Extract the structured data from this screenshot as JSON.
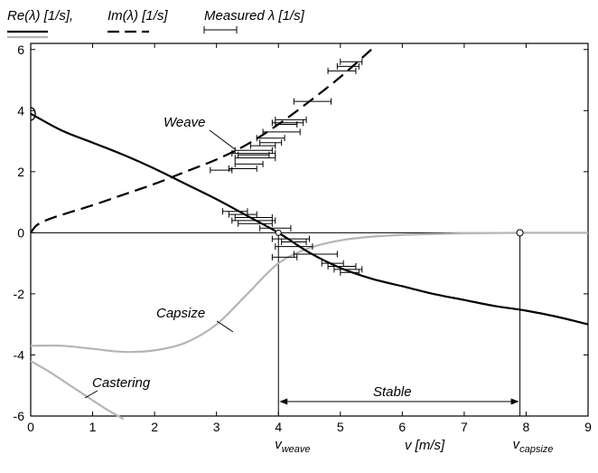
{
  "chart_data": {
    "type": "line",
    "xlabel": "v  [m/s]",
    "xlim": [
      0,
      9
    ],
    "ylim": [
      -6,
      6.2
    ],
    "x_ticks": [
      0,
      1,
      2,
      3,
      4,
      5,
      6,
      7,
      8,
      9
    ],
    "y_ticks": [
      6,
      4,
      2,
      0,
      -2,
      -4,
      -6
    ],
    "legend": {
      "placement": "top",
      "re_label": "Re(λ) [1/s],",
      "im_label": "Im(λ) [1/s]",
      "measured_label": "Measured λ [1/s]"
    },
    "annotations": {
      "weave": "Weave",
      "capsize": "Capsize",
      "castering": "Castering",
      "stable": "Stable",
      "v_weave_main": "v",
      "v_weave_sub": "weave",
      "v_capsize_main": "v",
      "v_capsize_sub": "capsize"
    },
    "markers": {
      "v_weave": 4.0,
      "v_capsize": 7.9
    },
    "series": [
      {
        "key": "weave_re",
        "style": "solid-black",
        "x": [
          0,
          0.5,
          1,
          1.5,
          2,
          2.5,
          3,
          3.5,
          4,
          4.5,
          5,
          5.5,
          6,
          6.5,
          7,
          7.5,
          8,
          8.5,
          9
        ],
        "y": [
          3.9,
          3.35,
          2.95,
          2.55,
          2.1,
          1.6,
          1.1,
          0.55,
          0.0,
          -0.65,
          -1.15,
          -1.5,
          -1.75,
          -2.0,
          -2.2,
          -2.4,
          -2.55,
          -2.75,
          -3.0
        ]
      },
      {
        "key": "weave_im",
        "style": "dashed-black",
        "x": [
          0,
          0.1,
          0.3,
          0.6,
          1,
          1.5,
          2,
          2.5,
          3,
          3.5,
          4,
          4.5,
          5,
          5.5
        ],
        "y": [
          0.0,
          0.25,
          0.45,
          0.65,
          0.9,
          1.25,
          1.6,
          2.0,
          2.4,
          2.9,
          3.55,
          4.3,
          5.1,
          6.0
        ]
      },
      {
        "key": "capsize",
        "style": "solid-gray",
        "x": [
          0,
          0.5,
          1,
          1.5,
          2,
          2.5,
          3,
          3.5,
          4,
          4.5,
          5,
          5.5,
          6,
          6.5,
          7,
          7.5,
          7.9,
          8.5,
          9
        ],
        "y": [
          -3.7,
          -3.7,
          -3.8,
          -3.9,
          -3.85,
          -3.6,
          -3.0,
          -2.0,
          -1.0,
          -0.5,
          -0.25,
          -0.13,
          -0.07,
          -0.04,
          -0.02,
          -0.01,
          0.0,
          0.0,
          0.0
        ]
      },
      {
        "key": "castering",
        "style": "solid-gray",
        "x": [
          0,
          0.3,
          0.6,
          0.9,
          1.2,
          1.5
        ],
        "y": [
          -4.2,
          -4.55,
          -4.95,
          -5.35,
          -5.75,
          -6.1
        ]
      }
    ],
    "measured": [
      {
        "y": 5.6,
        "xmin": 5.0,
        "xmax": 5.35
      },
      {
        "y": 5.45,
        "xmin": 4.95,
        "xmax": 5.3
      },
      {
        "y": 5.3,
        "xmin": 4.8,
        "xmax": 5.25
      },
      {
        "y": 4.3,
        "xmin": 4.25,
        "xmax": 4.85
      },
      {
        "y": 3.7,
        "xmin": 3.95,
        "xmax": 4.45
      },
      {
        "y": 3.6,
        "xmin": 3.9,
        "xmax": 4.4
      },
      {
        "y": 3.55,
        "xmin": 3.95,
        "xmax": 4.3
      },
      {
        "y": 3.3,
        "xmin": 3.75,
        "xmax": 4.35
      },
      {
        "y": 3.1,
        "xmin": 3.65,
        "xmax": 4.1
      },
      {
        "y": 2.95,
        "xmin": 3.7,
        "xmax": 4.05
      },
      {
        "y": 2.85,
        "xmin": 3.55,
        "xmax": 3.95
      },
      {
        "y": 2.7,
        "xmin": 3.3,
        "xmax": 3.9
      },
      {
        "y": 2.6,
        "xmin": 3.25,
        "xmax": 3.95
      },
      {
        "y": 2.55,
        "xmin": 3.35,
        "xmax": 3.85
      },
      {
        "y": 2.45,
        "xmin": 3.3,
        "xmax": 3.95
      },
      {
        "y": 2.25,
        "xmin": 3.3,
        "xmax": 3.75
      },
      {
        "y": 2.1,
        "xmin": 3.2,
        "xmax": 3.65
      },
      {
        "y": 2.05,
        "xmin": 2.9,
        "xmax": 3.25
      },
      {
        "y": 0.7,
        "xmin": 3.1,
        "xmax": 3.5
      },
      {
        "y": 0.6,
        "xmin": 3.2,
        "xmax": 3.65
      },
      {
        "y": 0.5,
        "xmin": 3.3,
        "xmax": 3.9
      },
      {
        "y": 0.4,
        "xmin": 3.25,
        "xmax": 3.95
      },
      {
        "y": 0.3,
        "xmin": 3.35,
        "xmax": 3.9
      },
      {
        "y": 0.15,
        "xmin": 3.7,
        "xmax": 4.2
      },
      {
        "y": -0.2,
        "xmin": 3.9,
        "xmax": 4.5
      },
      {
        "y": -0.3,
        "xmin": 4.05,
        "xmax": 4.45
      },
      {
        "y": -0.45,
        "xmin": 3.95,
        "xmax": 4.55
      },
      {
        "y": -0.7,
        "xmin": 4.25,
        "xmax": 4.95
      },
      {
        "y": -0.8,
        "xmin": 3.9,
        "xmax": 4.3
      },
      {
        "y": -1.0,
        "xmin": 4.7,
        "xmax": 5.05
      },
      {
        "y": -1.1,
        "xmin": 4.8,
        "xmax": 5.25
      },
      {
        "y": -1.2,
        "xmin": 4.9,
        "xmax": 5.35
      },
      {
        "y": -1.3,
        "xmin": 5.0,
        "xmax": 5.3
      }
    ]
  }
}
